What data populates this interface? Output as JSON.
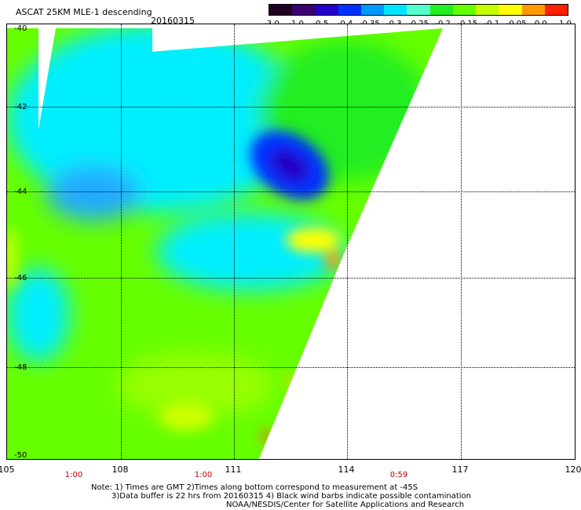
{
  "header": {
    "title": "ASCAT 25KM MLE-1 descending",
    "date": "20160315"
  },
  "colorbar": {
    "labels": [
      "-3.0",
      "-1.0",
      "-0.5",
      "-0.4",
      "-0.35",
      "-0.3",
      "-0.25",
      "-0.2",
      "-0.15",
      "-0.1",
      "-0.05",
      "0.0",
      "1.0"
    ],
    "colors": [
      "#200020",
      "#3a0070",
      "#2200c8",
      "#0033ff",
      "#0099ff",
      "#00e5ff",
      "#55ffcc",
      "#22ee22",
      "#66ff00",
      "#c8ff00",
      "#ffff00",
      "#ff9900",
      "#ff2200"
    ]
  },
  "map": {
    "lat_labels": [
      "-40",
      "-42",
      "-44",
      "-46",
      "-48",
      "-50"
    ],
    "lon_labels": [
      "105",
      "108",
      "111",
      "114",
      "117",
      "120"
    ],
    "time_labels": [
      "1:00",
      "1:00",
      "0:59"
    ]
  },
  "notes": {
    "line1": "Note: 1) Times are GMT 2)Times along bottom correspond to measurement at -45S",
    "line2": "3)Data buffer is 22 hrs from 20160315 4) Black wind barbs indicate possible contamination",
    "line3": "NOAA/NESDIS/Center for Satellite Applications and Research"
  }
}
